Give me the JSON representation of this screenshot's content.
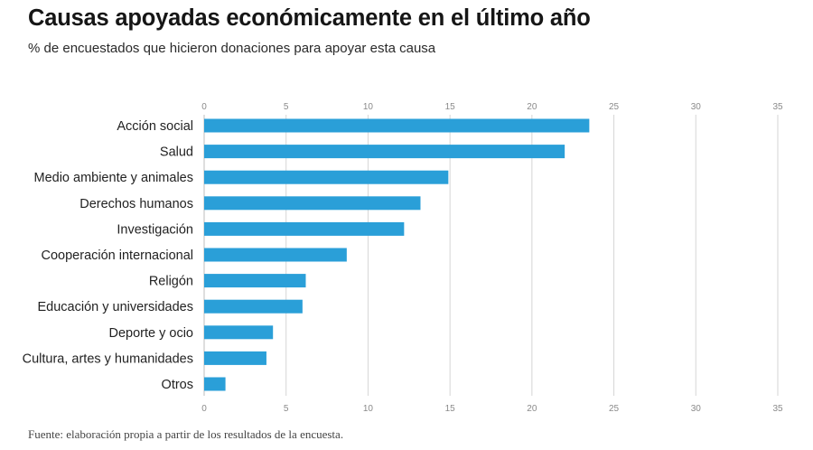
{
  "header": {
    "title": "Causas apoyadas económicamente en el último año",
    "subtitle": "% de encuestados que hicieron donaciones para apoyar esta causa"
  },
  "footer": {
    "source": "Fuente: elaboración propia a partir de los resultados de la encuesta."
  },
  "colors": {
    "bar": "#2a9fd8"
  },
  "chart_data": {
    "type": "bar",
    "orientation": "horizontal",
    "title": "Causas apoyadas económicamente en el último año",
    "subtitle": "% de encuestados que hicieron donaciones para apoyar esta causa",
    "categories": [
      "Acción social",
      "Salud",
      "Medio ambiente y animales",
      "Derechos humanos",
      "Investigación",
      "Cooperación internacional",
      "Religón",
      "Educación y universidades",
      "Deporte y ocio",
      "Cultura, artes y humanidades",
      "Otros"
    ],
    "values": [
      23.5,
      22.0,
      14.9,
      13.2,
      12.2,
      8.7,
      6.2,
      6.0,
      4.2,
      3.8,
      1.3
    ],
    "xlim": [
      0,
      35
    ],
    "xticks": [
      "0",
      "5",
      "10",
      "15",
      "20",
      "25",
      "30",
      "35"
    ],
    "xlabel": "",
    "ylabel": "",
    "grid": true,
    "tick_labels_top_and_bottom": true
  }
}
